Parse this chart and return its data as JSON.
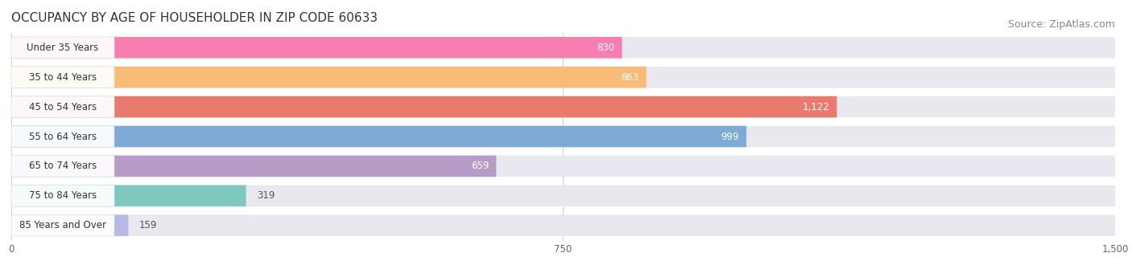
{
  "title": "OCCUPANCY BY AGE OF HOUSEHOLDER IN ZIP CODE 60633",
  "source": "Source: ZipAtlas.com",
  "categories": [
    "Under 35 Years",
    "35 to 44 Years",
    "45 to 54 Years",
    "55 to 64 Years",
    "65 to 74 Years",
    "75 to 84 Years",
    "85 Years and Over"
  ],
  "values": [
    830,
    863,
    1122,
    999,
    659,
    319,
    159
  ],
  "bar_colors": [
    "#F77EB0",
    "#F9BB78",
    "#E87B6E",
    "#7EAAD8",
    "#B89CC8",
    "#7EC8C0",
    "#B8B8E8"
  ],
  "bar_bg_color": "#E8E8EE",
  "xlim": [
    0,
    1500
  ],
  "xticks": [
    0,
    750,
    1500
  ],
  "title_fontsize": 11,
  "source_fontsize": 9,
  "label_fontsize": 8.5,
  "value_fontsize": 8.5,
  "background_color": "#FFFFFF",
  "value_threshold_inside": 400,
  "grid_color": "#CCCCCC"
}
